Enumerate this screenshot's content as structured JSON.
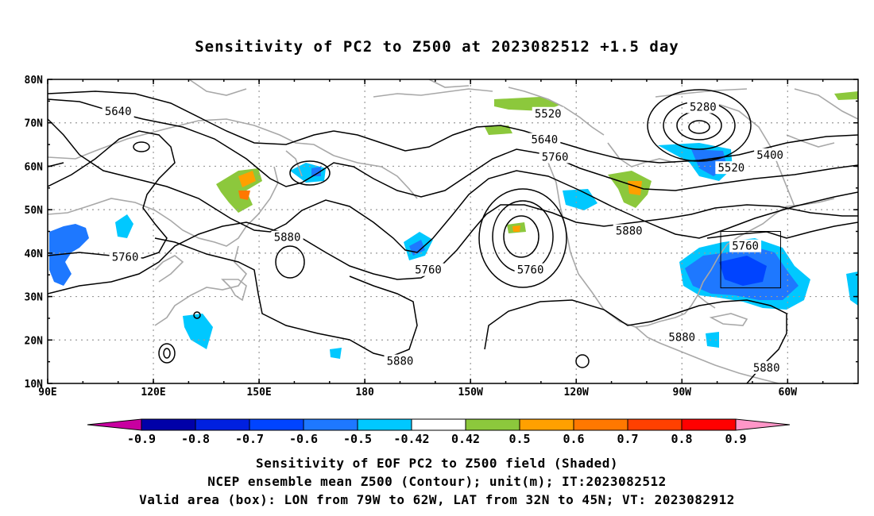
{
  "title": "Sensitivity of PC2 to Z500 at 2023082512 +1.5 day",
  "lat_labels": [
    "80N",
    "70N",
    "60N",
    "50N",
    "40N",
    "30N",
    "20N",
    "10N"
  ],
  "lon_labels": [
    "90E",
    "120E",
    "150E",
    "180",
    "150W",
    "120W",
    "90W",
    "60W"
  ],
  "contours": [
    {
      "label": "5640",
      "lat": 72.5,
      "lon": 110
    },
    {
      "label": "5520",
      "lat": 72,
      "lon": -128
    },
    {
      "label": "5640",
      "lat": 66,
      "lon": -129
    },
    {
      "label": "5760",
      "lat": 62,
      "lon": -126
    },
    {
      "label": "5280",
      "lat": 73.5,
      "lon": -84
    },
    {
      "label": "5400",
      "lat": 62.5,
      "lon": -65
    },
    {
      "label": "5520",
      "lat": 59.5,
      "lon": -76
    },
    {
      "label": "5880",
      "lat": 43.5,
      "lon": 158
    },
    {
      "label": "5760",
      "lat": 39,
      "lon": 112
    },
    {
      "label": "5760",
      "lat": 36,
      "lon": -162
    },
    {
      "label": "5760",
      "lat": 36,
      "lon": -133
    },
    {
      "label": "5880",
      "lat": 45,
      "lon": -105
    },
    {
      "label": "5760",
      "lat": 41.5,
      "lon": -72
    },
    {
      "label": "5880",
      "lat": 20.5,
      "lon": -90
    },
    {
      "label": "5880",
      "lat": 15,
      "lon": -170
    },
    {
      "label": "5880",
      "lat": 13.5,
      "lon": -66
    }
  ],
  "colorbar": {
    "labels": [
      "-0.9",
      "-0.8",
      "-0.7",
      "-0.6",
      "-0.5",
      "-0.42",
      "0.42",
      "0.5",
      "0.6",
      "0.7",
      "0.8",
      "0.9"
    ],
    "colors": [
      "#0000a8",
      "#0020e0",
      "#0044ff",
      "#1e78ff",
      "#00c8ff",
      "#ffffff",
      "#8cc83c",
      "#ffa000",
      "#ff7800",
      "#ff4000",
      "#ff0000"
    ],
    "low_color": "#c800a0",
    "high_color": "#ff96c8"
  },
  "valid_box": {
    "lon_min": -79,
    "lon_max": -62,
    "lat_min": 32,
    "lat_max": 45
  },
  "footer": {
    "line1": "Sensitivity of EOF PC2 to Z500 field (Shaded)",
    "line2": "NCEP ensemble mean Z500 (Contour); unit(m); IT:2023082512",
    "line3": "Valid area (box): LON from 79W to 62W, LAT from 32N to 45N; VT: 2023082912"
  }
}
